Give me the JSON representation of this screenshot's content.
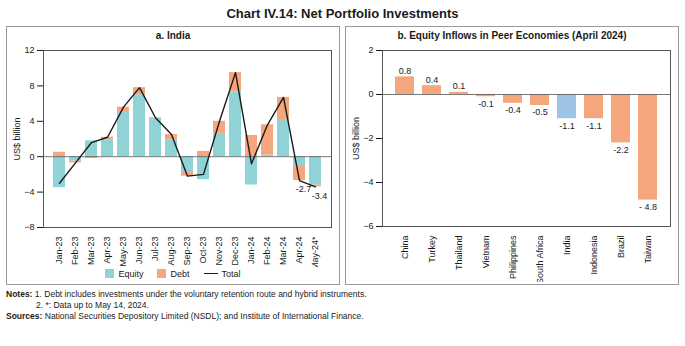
{
  "title": "Chart IV.14: Net Portfolio Investments",
  "notes": {
    "label": "Notes:",
    "items": [
      "1. Debt includes investments under the voluntary retention route and hybrid instruments.",
      "2. *: Data up to May 14, 2024."
    ]
  },
  "sources": {
    "label": "Sources:",
    "text": "National Securities Depository Limited (NSDL); and Institute of International Finance."
  },
  "chart_data": [
    {
      "type": "bar",
      "title": "a. India",
      "y_label": "US$ billion",
      "categories": [
        "Jan-23",
        "Feb-23",
        "Mar-23",
        "Apr-23",
        "May-23",
        "Jun-23",
        "Jul-23",
        "Aug-23",
        "Sep-23",
        "Oct-23",
        "Nov-23",
        "Dec-23",
        "Jan-24",
        "Feb-24",
        "Mar-24",
        "Apr-24",
        "May-24*"
      ],
      "series": [
        {
          "name": "Equity",
          "type": "bar",
          "color": "#8fd3d6",
          "values": [
            -3.5,
            -0.5,
            1.8,
            1.9,
            5.0,
            7.0,
            4.3,
            1.9,
            -1.8,
            -2.6,
            2.6,
            7.3,
            -3.2,
            0.2,
            4.2,
            -1.0,
            -3.2
          ]
        },
        {
          "name": "Debt",
          "type": "bar",
          "color": "#f5a67d",
          "values": [
            0.5,
            -0.2,
            -0.2,
            0.3,
            0.6,
            0.8,
            0.1,
            0.6,
            -0.4,
            0.6,
            1.4,
            2.2,
            2.4,
            3.4,
            2.5,
            -1.7,
            -0.2
          ]
        },
        {
          "name": "Total",
          "type": "line",
          "color": "#1a1a1a",
          "values": [
            -3.0,
            -0.7,
            1.6,
            2.2,
            5.6,
            7.8,
            4.4,
            2.5,
            -2.2,
            -2.0,
            4.0,
            9.5,
            -0.8,
            3.6,
            6.7,
            -2.7,
            -3.4
          ]
        }
      ],
      "annotations": [
        {
          "x": "Apr-24",
          "y": -2.7,
          "text": "-2.7"
        },
        {
          "x": "May-24*",
          "y": -3.4,
          "text": "-3.4"
        }
      ],
      "stacked": true,
      "ylim": [
        -8,
        12
      ],
      "yticks": [
        -8,
        -4,
        0,
        4,
        8,
        12
      ],
      "legend": "bottom"
    },
    {
      "type": "bar",
      "title": "b. Equity Inflows in Peer Economies (April 2024)",
      "y_label": "US$ billion",
      "categories": [
        "China",
        "Turkey",
        "Thailand",
        "Vietnam",
        "Philippines",
        "South Africa",
        "India",
        "Indonesia",
        "Brazil",
        "Taiwan"
      ],
      "values": [
        0.8,
        0.4,
        0.1,
        -0.1,
        -0.4,
        -0.5,
        -1.1,
        -1.1,
        -2.2,
        -4.8
      ],
      "value_labels": [
        "0.8",
        "0.4",
        "0.1",
        "-0.1",
        "-0.4",
        "-0.5",
        "-1.1",
        "-1.1",
        "-2.2",
        "- 4.8"
      ],
      "colors": [
        "#f5a67d",
        "#f5a67d",
        "#f5a67d",
        "#f5a67d",
        "#f5a67d",
        "#f5a67d",
        "#9dc3e6",
        "#f5a67d",
        "#f5a67d",
        "#f5a67d"
      ],
      "data_labels": true,
      "ylim": [
        -6,
        2
      ],
      "yticks": [
        -6,
        -4,
        -2,
        0,
        2
      ]
    }
  ]
}
